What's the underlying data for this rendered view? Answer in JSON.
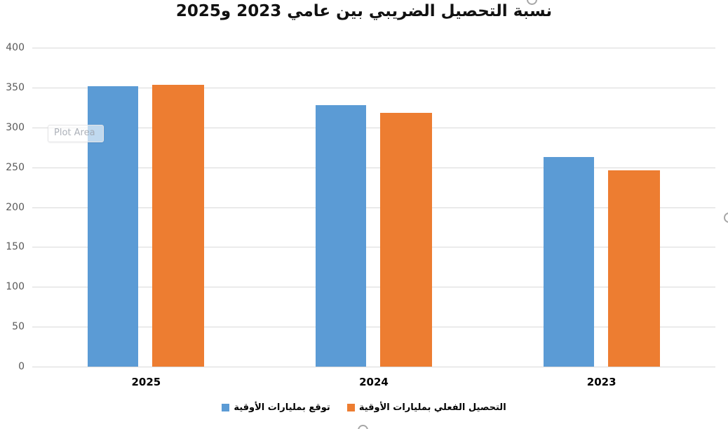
{
  "chart": {
    "title": "نسبة التحصيل الضريبي بين عامي 2023 و2025",
    "plot_area_label": "Plot Area"
  },
  "chart_data": {
    "type": "bar",
    "direction": "rtl",
    "title": "نسبة التحصيل الضريبي بين عامي 2023 و2025",
    "categories": [
      "2025",
      "2024",
      "2023"
    ],
    "series": [
      {
        "key": "forecast",
        "name": "توقع بمليارات الأوقية",
        "color": "#5B9BD5",
        "values": [
          352,
          328,
          263
        ]
      },
      {
        "key": "actual",
        "name": "التحصيل الفعلي بمليارات الأوقية",
        "color": "#ED7D31",
        "values": [
          353,
          318,
          246
        ]
      }
    ],
    "xlabel": "",
    "ylabel": "",
    "ylim": [
      0,
      400
    ],
    "ytick_interval": 50,
    "grid": true,
    "legend_position": "bottom",
    "colors": {
      "gridline": "#D9D9D9",
      "axis_label": "#595959",
      "category_label": "#000000",
      "handle": "#A6A6A6"
    }
  }
}
